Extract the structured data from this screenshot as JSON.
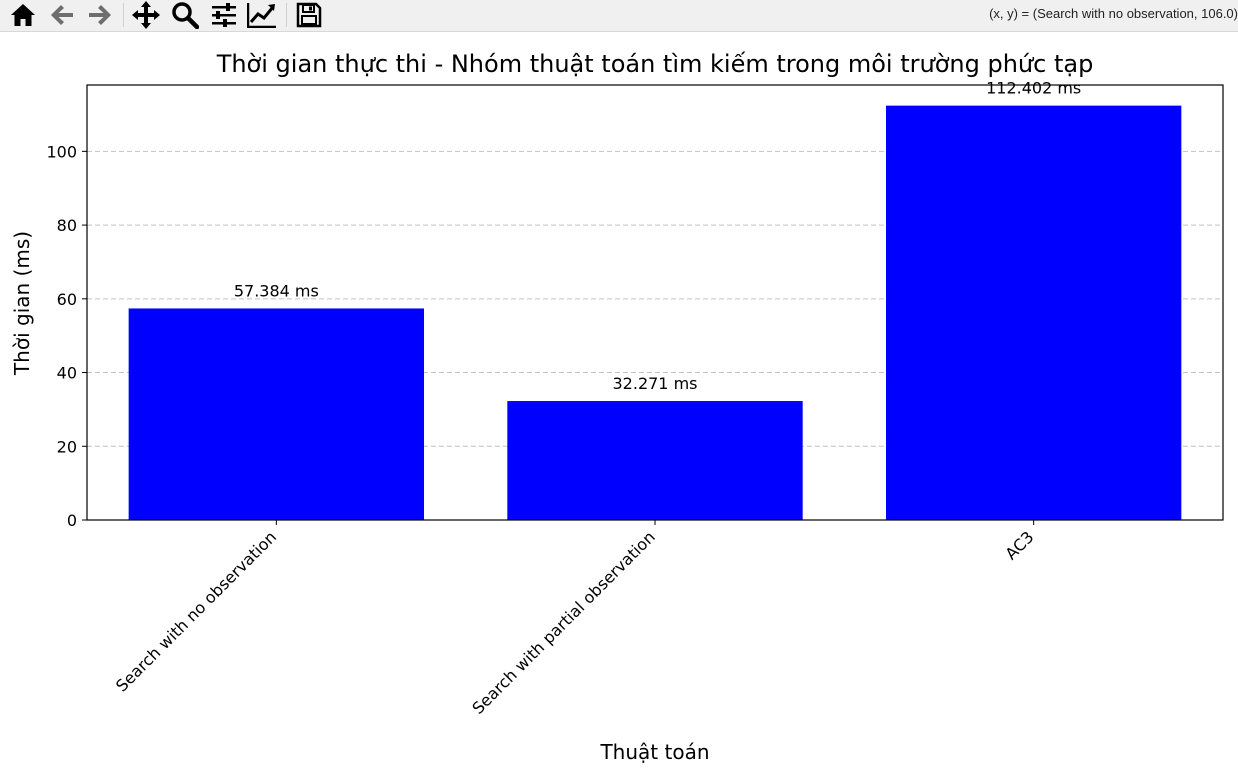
{
  "toolbar": {
    "buttons": [
      {
        "name": "home-icon"
      },
      {
        "name": "back-arrow-icon"
      },
      {
        "name": "forward-arrow-icon"
      },
      {
        "name": "pan-icon"
      },
      {
        "name": "zoom-icon"
      },
      {
        "name": "configure-subplots-icon"
      },
      {
        "name": "edit-axis-icon"
      },
      {
        "name": "save-icon"
      }
    ],
    "coords_text": "(x, y) = (Search with no observation, 106.0)"
  },
  "colors": {
    "bar": "#0000ff",
    "grid": "#b0b0b0",
    "icon": "#000000",
    "icon_inactive": "#6e6e6e"
  },
  "chart_data": {
    "type": "bar",
    "title": "Thời gian thực thi - Nhóm thuật toán tìm kiếm trong môi trường phức tạp",
    "xlabel": "Thuật toán",
    "ylabel": "Thời gian (ms)",
    "categories": [
      "Search with no observation",
      "Search with partial observation",
      "AC3"
    ],
    "values": [
      57.384,
      32.271,
      112.402
    ],
    "data_labels": [
      "57.384 ms",
      "32.271 ms",
      "112.402 ms"
    ],
    "ylim": [
      0,
      118.0
    ],
    "yticks": [
      0,
      20,
      40,
      60,
      80,
      100
    ],
    "ytick_labels": [
      "0",
      "20",
      "40",
      "60",
      "80",
      "100"
    ],
    "grid": "y-dashed",
    "legend": "none"
  }
}
